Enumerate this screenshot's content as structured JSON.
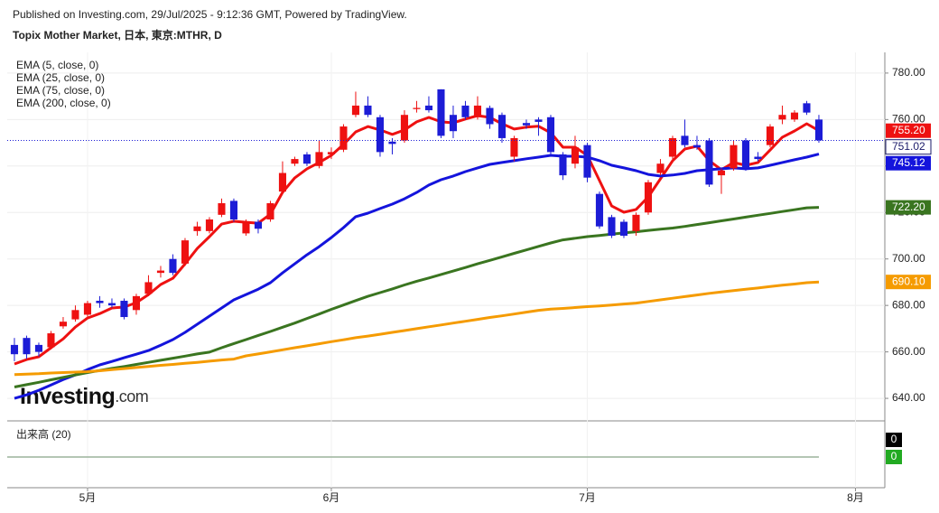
{
  "header": {
    "published": "Published on Investing.com, 29/Jul/2025 - 9:12:36 GMT, Powered by TradingView.",
    "symbol": "Topix Mother Market, 日本, 東京:MTHR, D"
  },
  "chart_data": {
    "type": "candlestick",
    "candles": {
      "open": [
        663,
        666,
        663,
        662,
        671,
        674,
        676,
        682,
        681,
        682,
        678,
        685,
        694,
        700,
        698,
        712,
        712,
        719,
        725,
        711,
        716,
        717,
        729,
        741,
        745,
        740,
        745,
        747,
        762,
        766,
        761,
        750.5,
        751,
        764.5,
        766,
        773,
        762,
        766,
        761,
        765,
        762,
        744,
        758.5,
        760,
        761,
        745,
        741,
        749,
        728,
        718,
        716,
        712,
        720,
        737,
        744,
        753,
        749,
        751,
        736,
        739,
        751,
        744,
        749,
        760,
        760,
        767,
        760
      ],
      "high": [
        666,
        667,
        664,
        669,
        675,
        680,
        682,
        684,
        683,
        683,
        685,
        693,
        697,
        702,
        709,
        716,
        718,
        726,
        726,
        717,
        717,
        725,
        742,
        744,
        746,
        751,
        748,
        758,
        772,
        770,
        762,
        752,
        764,
        768,
        770,
        773,
        766,
        768,
        770,
        766,
        763,
        753,
        760,
        761,
        762,
        746,
        753,
        750,
        729,
        719,
        717,
        720,
        734,
        743,
        753,
        760,
        753,
        752,
        739,
        751,
        752,
        746,
        758,
        766,
        764,
        768,
        762
      ],
      "low": [
        656,
        657,
        658,
        661,
        670,
        673,
        675,
        679,
        679,
        674,
        676,
        684,
        692,
        693,
        697,
        710,
        711,
        718,
        716,
        710,
        711,
        716,
        728,
        740,
        740,
        739,
        743,
        746,
        761,
        761,
        744,
        745,
        750,
        763,
        763,
        752,
        752,
        760,
        760,
        756,
        750,
        742,
        756,
        753,
        745,
        734,
        739,
        733,
        713,
        709,
        709,
        710,
        719,
        736,
        743,
        748,
        747,
        731,
        728,
        738,
        738,
        742,
        748,
        758,
        759,
        762,
        750
      ],
      "close": [
        659,
        659,
        660,
        668,
        673,
        678,
        681,
        681,
        680,
        675,
        684,
        690,
        695,
        694,
        708,
        714,
        717,
        724,
        717,
        716,
        713,
        724,
        737,
        743,
        741,
        746,
        746,
        757,
        766,
        762,
        746,
        749.5,
        762,
        765,
        764,
        753,
        755,
        761,
        766,
        758,
        752,
        752,
        757.5,
        759,
        746,
        736,
        748,
        735,
        714,
        710,
        710,
        719,
        733,
        741,
        752,
        749,
        748,
        732,
        738,
        749,
        739,
        743,
        757,
        762,
        763,
        763,
        751.02
      ],
      "close_labels": {
        "66": "751.02"
      },
      "up_color": "#ee1111",
      "down_color": "#1c1cd6"
    },
    "series": [
      {
        "name": "EMA (5, close, 0)",
        "color": "#ee1111",
        "values": [
          654.8,
          656.7,
          657.9,
          661.8,
          665.6,
          670.7,
          674.6,
          676.5,
          678.9,
          679.3,
          681.2,
          684.7,
          689.0,
          691.7,
          697.9,
          704.5,
          709.6,
          715.0,
          716.2,
          715.8,
          715.4,
          719.3,
          728.7,
          734.9,
          738.8,
          741.5,
          744.6,
          749.3,
          754.7,
          757.0,
          755.5,
          753.6,
          755.5,
          759.0,
          760.9,
          759.0,
          758.6,
          760.2,
          761.7,
          760.9,
          758.2,
          755.9,
          756.7,
          757.1,
          754.3,
          748.1,
          748.1,
          744.6,
          733.7,
          722.8,
          720.1,
          721.3,
          726.7,
          734.5,
          742.3,
          747.3,
          748.5,
          742.3,
          738.4,
          741.5,
          740.3,
          741.5,
          746.9,
          752.4,
          755.1,
          758.2,
          755.2
        ],
        "value_labels": {
          "66": "755.20"
        }
      },
      {
        "name": "EMA (25, close, 0)",
        "color": "#1414dc",
        "values": [
          640.0,
          641.5,
          643.5,
          645.8,
          648.1,
          650.1,
          652.4,
          654.4,
          655.9,
          657.5,
          659.0,
          660.6,
          662.9,
          665.3,
          668.4,
          671.9,
          675.4,
          678.9,
          682.4,
          684.7,
          687.0,
          689.8,
          694.0,
          697.9,
          701.8,
          705.3,
          709.2,
          713.5,
          718.2,
          719.7,
          721.7,
          723.6,
          725.9,
          728.6,
          731.8,
          734.1,
          735.7,
          737.6,
          739.2,
          740.7,
          741.5,
          742.3,
          743.1,
          743.8,
          744.6,
          744.2,
          744.2,
          743.8,
          742.3,
          740.3,
          739.2,
          738.0,
          736.4,
          735.7,
          736.1,
          736.8,
          738.0,
          738.4,
          738.8,
          739.2,
          738.8,
          739.2,
          740.3,
          741.5,
          742.7,
          743.8,
          745.12
        ],
        "value_labels": {
          "66": "745.12"
        }
      },
      {
        "name": "EMA (75, close, 0)",
        "color": "#3a7520",
        "values": [
          644.9,
          645.9,
          646.9,
          648.0,
          649.0,
          650.1,
          651.1,
          652.0,
          652.9,
          653.7,
          654.6,
          655.5,
          656.4,
          657.3,
          658.2,
          659.1,
          659.9,
          661.8,
          663.6,
          665.3,
          667.1,
          668.8,
          670.6,
          672.4,
          674.4,
          676.3,
          678.3,
          680.2,
          682.1,
          683.9,
          685.5,
          687.1,
          688.8,
          690.4,
          691.8,
          693.3,
          694.8,
          696.3,
          697.9,
          699.4,
          700.9,
          702.4,
          703.9,
          705.4,
          706.9,
          708.2,
          708.9,
          709.6,
          710.1,
          710.7,
          711.2,
          711.7,
          712.3,
          712.8,
          713.3,
          714.0,
          714.8,
          715.6,
          716.4,
          717.2,
          718.0,
          718.8,
          719.6,
          720.4,
          721.2,
          722.0,
          722.2
        ],
        "value_labels": {
          "66": "722.20"
        }
      },
      {
        "name": "EMA (200, close, 0)",
        "color": "#f59b00",
        "values": [
          650.2,
          650.4,
          650.6,
          650.9,
          651.1,
          651.3,
          651.5,
          651.9,
          652.4,
          652.8,
          653.3,
          653.7,
          654.2,
          654.6,
          655.1,
          655.5,
          656.0,
          656.5,
          656.9,
          658.3,
          659.1,
          660.0,
          660.9,
          661.8,
          662.6,
          663.5,
          664.4,
          665.2,
          666.1,
          666.8,
          667.6,
          668.4,
          669.2,
          670.0,
          670.8,
          671.6,
          672.4,
          673.2,
          674.0,
          674.8,
          675.5,
          676.3,
          677.1,
          677.9,
          678.4,
          678.7,
          679.1,
          679.5,
          679.8,
          680.2,
          680.6,
          681.0,
          681.7,
          682.4,
          683.1,
          683.8,
          684.5,
          685.2,
          685.8,
          686.4,
          687.0,
          687.5,
          688.1,
          688.7,
          689.2,
          689.8,
          690.1
        ],
        "value_labels": {
          "66": "690.10"
        }
      }
    ],
    "xlim": [
      -0.59,
      71.41
    ],
    "xticks": [
      {
        "value": 6,
        "label": "5月"
      },
      {
        "value": 26,
        "label": "6月"
      },
      {
        "value": 47,
        "label": "7月"
      },
      {
        "value": 69,
        "label": "8月"
      }
    ],
    "ylim": [
      630.7,
      788.9
    ],
    "yticks": [
      {
        "value": 640,
        "label": "640.00"
      },
      {
        "value": 660,
        "label": "660.00"
      },
      {
        "value": 680,
        "label": "680.00"
      },
      {
        "value": 700,
        "label": "700.00"
      },
      {
        "value": 720,
        "label": "720.00"
      },
      {
        "value": 740,
        "label": "740.00"
      },
      {
        "value": 760,
        "label": "760.00"
      },
      {
        "value": 780,
        "label": "780.00"
      }
    ],
    "grid": true,
    "watermark": {
      "word": "Investing",
      "suffix": ".com"
    },
    "volume": {
      "title": "出来高 (20)",
      "last": 0,
      "ma_last": 0,
      "color": "#000000",
      "ma_color": "#22aa22"
    }
  }
}
